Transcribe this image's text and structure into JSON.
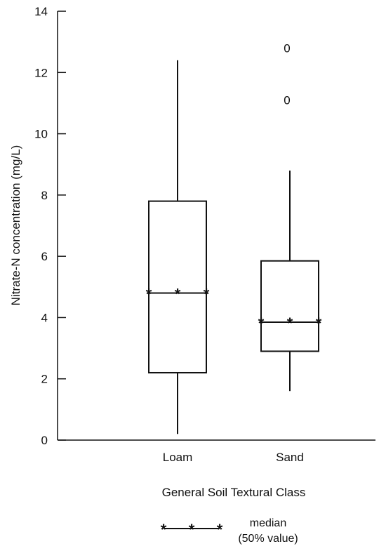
{
  "chart_data": {
    "type": "box",
    "title": "",
    "xlabel": "General Soil Textural Class",
    "ylabel": "Nitrate-N concentration (mg/L)",
    "ylim": [
      0,
      14
    ],
    "yticks": [
      0,
      2,
      4,
      6,
      8,
      10,
      12,
      14
    ],
    "categories": [
      "Loam",
      "Sand"
    ],
    "boxes": [
      {
        "category": "Loam",
        "min": 0.2,
        "q1": 2.2,
        "median": 4.8,
        "q3": 7.8,
        "max": 12.4,
        "outliers": []
      },
      {
        "category": "Sand",
        "min": 1.6,
        "q1": 2.9,
        "median": 3.85,
        "q3": 5.85,
        "max": 8.8,
        "outliers": [
          12.8,
          11.1
        ]
      }
    ],
    "outlier_marker": "0",
    "median_marker": "*",
    "legend": {
      "label_line1": "median",
      "label_line2": "(50% value)"
    }
  }
}
